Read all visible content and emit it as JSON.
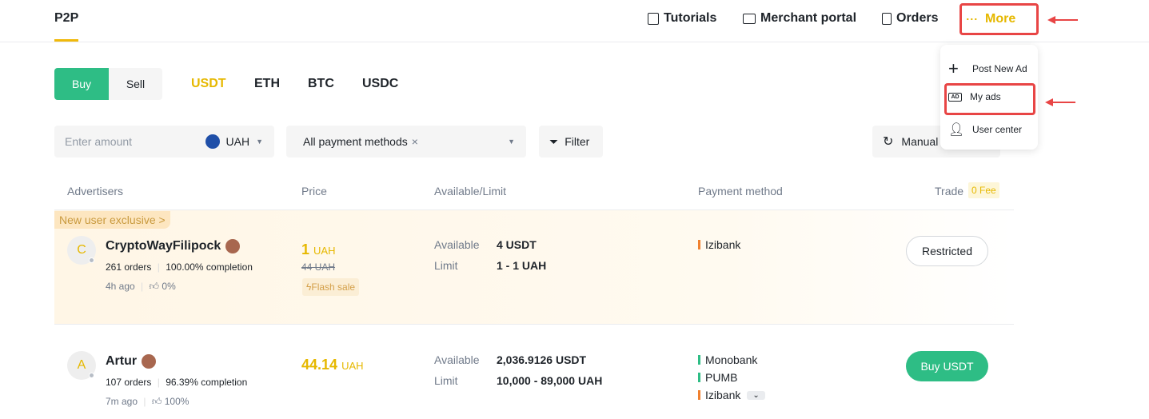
{
  "header": {
    "logo": "P2P",
    "nav": [
      {
        "label": "Tutorials",
        "icon": "tutorial-icon"
      },
      {
        "label": "Merchant portal",
        "icon": "chart-icon"
      },
      {
        "label": "Orders",
        "icon": "document-icon"
      }
    ],
    "more": "More"
  },
  "menu": {
    "items": [
      {
        "label": "Post New Ad",
        "icon": "plus-icon"
      },
      {
        "label": "My ads",
        "icon": "ad-icon"
      },
      {
        "label": "User center",
        "icon": "user-icon"
      }
    ]
  },
  "trade_tabs": {
    "buy": "Buy",
    "sell": "Sell"
  },
  "coins": [
    "USDT",
    "ETH",
    "BTC",
    "USDC"
  ],
  "coin_selected": "USDT",
  "filters": {
    "amount_placeholder": "Enter amount",
    "currency": "UAH",
    "payment": "All payment methods",
    "filter": "Filter",
    "refresh": "Manual"
  },
  "table": {
    "headers": {
      "advertisers": "Advertisers",
      "price": "Price",
      "available": "Available/Limit",
      "payment": "Payment method",
      "trade": "Trade",
      "fee": "0 Fee"
    },
    "rows": [
      {
        "tag": "New user exclusive >",
        "initial": "C",
        "name": "CryptoWayFilipock",
        "orders": "261 orders",
        "completion": "100.00% completion",
        "time": "4h ago",
        "rating": "0%",
        "price": "1",
        "currency": "UAH",
        "old_price": "44 UAH",
        "flash": "Flash sale",
        "available_label": "Available",
        "available": "4 USDT",
        "limit_label": "Limit",
        "limit": "1 - 1 UAH",
        "payments": [
          {
            "name": "Izibank",
            "color": "#f0802e"
          }
        ],
        "action": "Restricted"
      },
      {
        "initial": "A",
        "name": "Artur",
        "orders": "107 orders",
        "completion": "96.39% completion",
        "time": "7m ago",
        "rating": "100%",
        "price": "44.14",
        "currency": "UAH",
        "available_label": "Available",
        "available": "2,036.9126 USDT",
        "limit_label": "Limit",
        "limit": "10,000 - 89,000 UAH",
        "payments": [
          {
            "name": "Monobank",
            "color": "#2ebd85"
          },
          {
            "name": "PUMB",
            "color": "#2ebd85"
          },
          {
            "name": "Izibank",
            "color": "#f0802e"
          }
        ],
        "action": "Buy USDT"
      }
    ]
  },
  "colors": {
    "accent": "#f0b90b",
    "buy": "#2ebd85",
    "highlight": "#e84545"
  }
}
